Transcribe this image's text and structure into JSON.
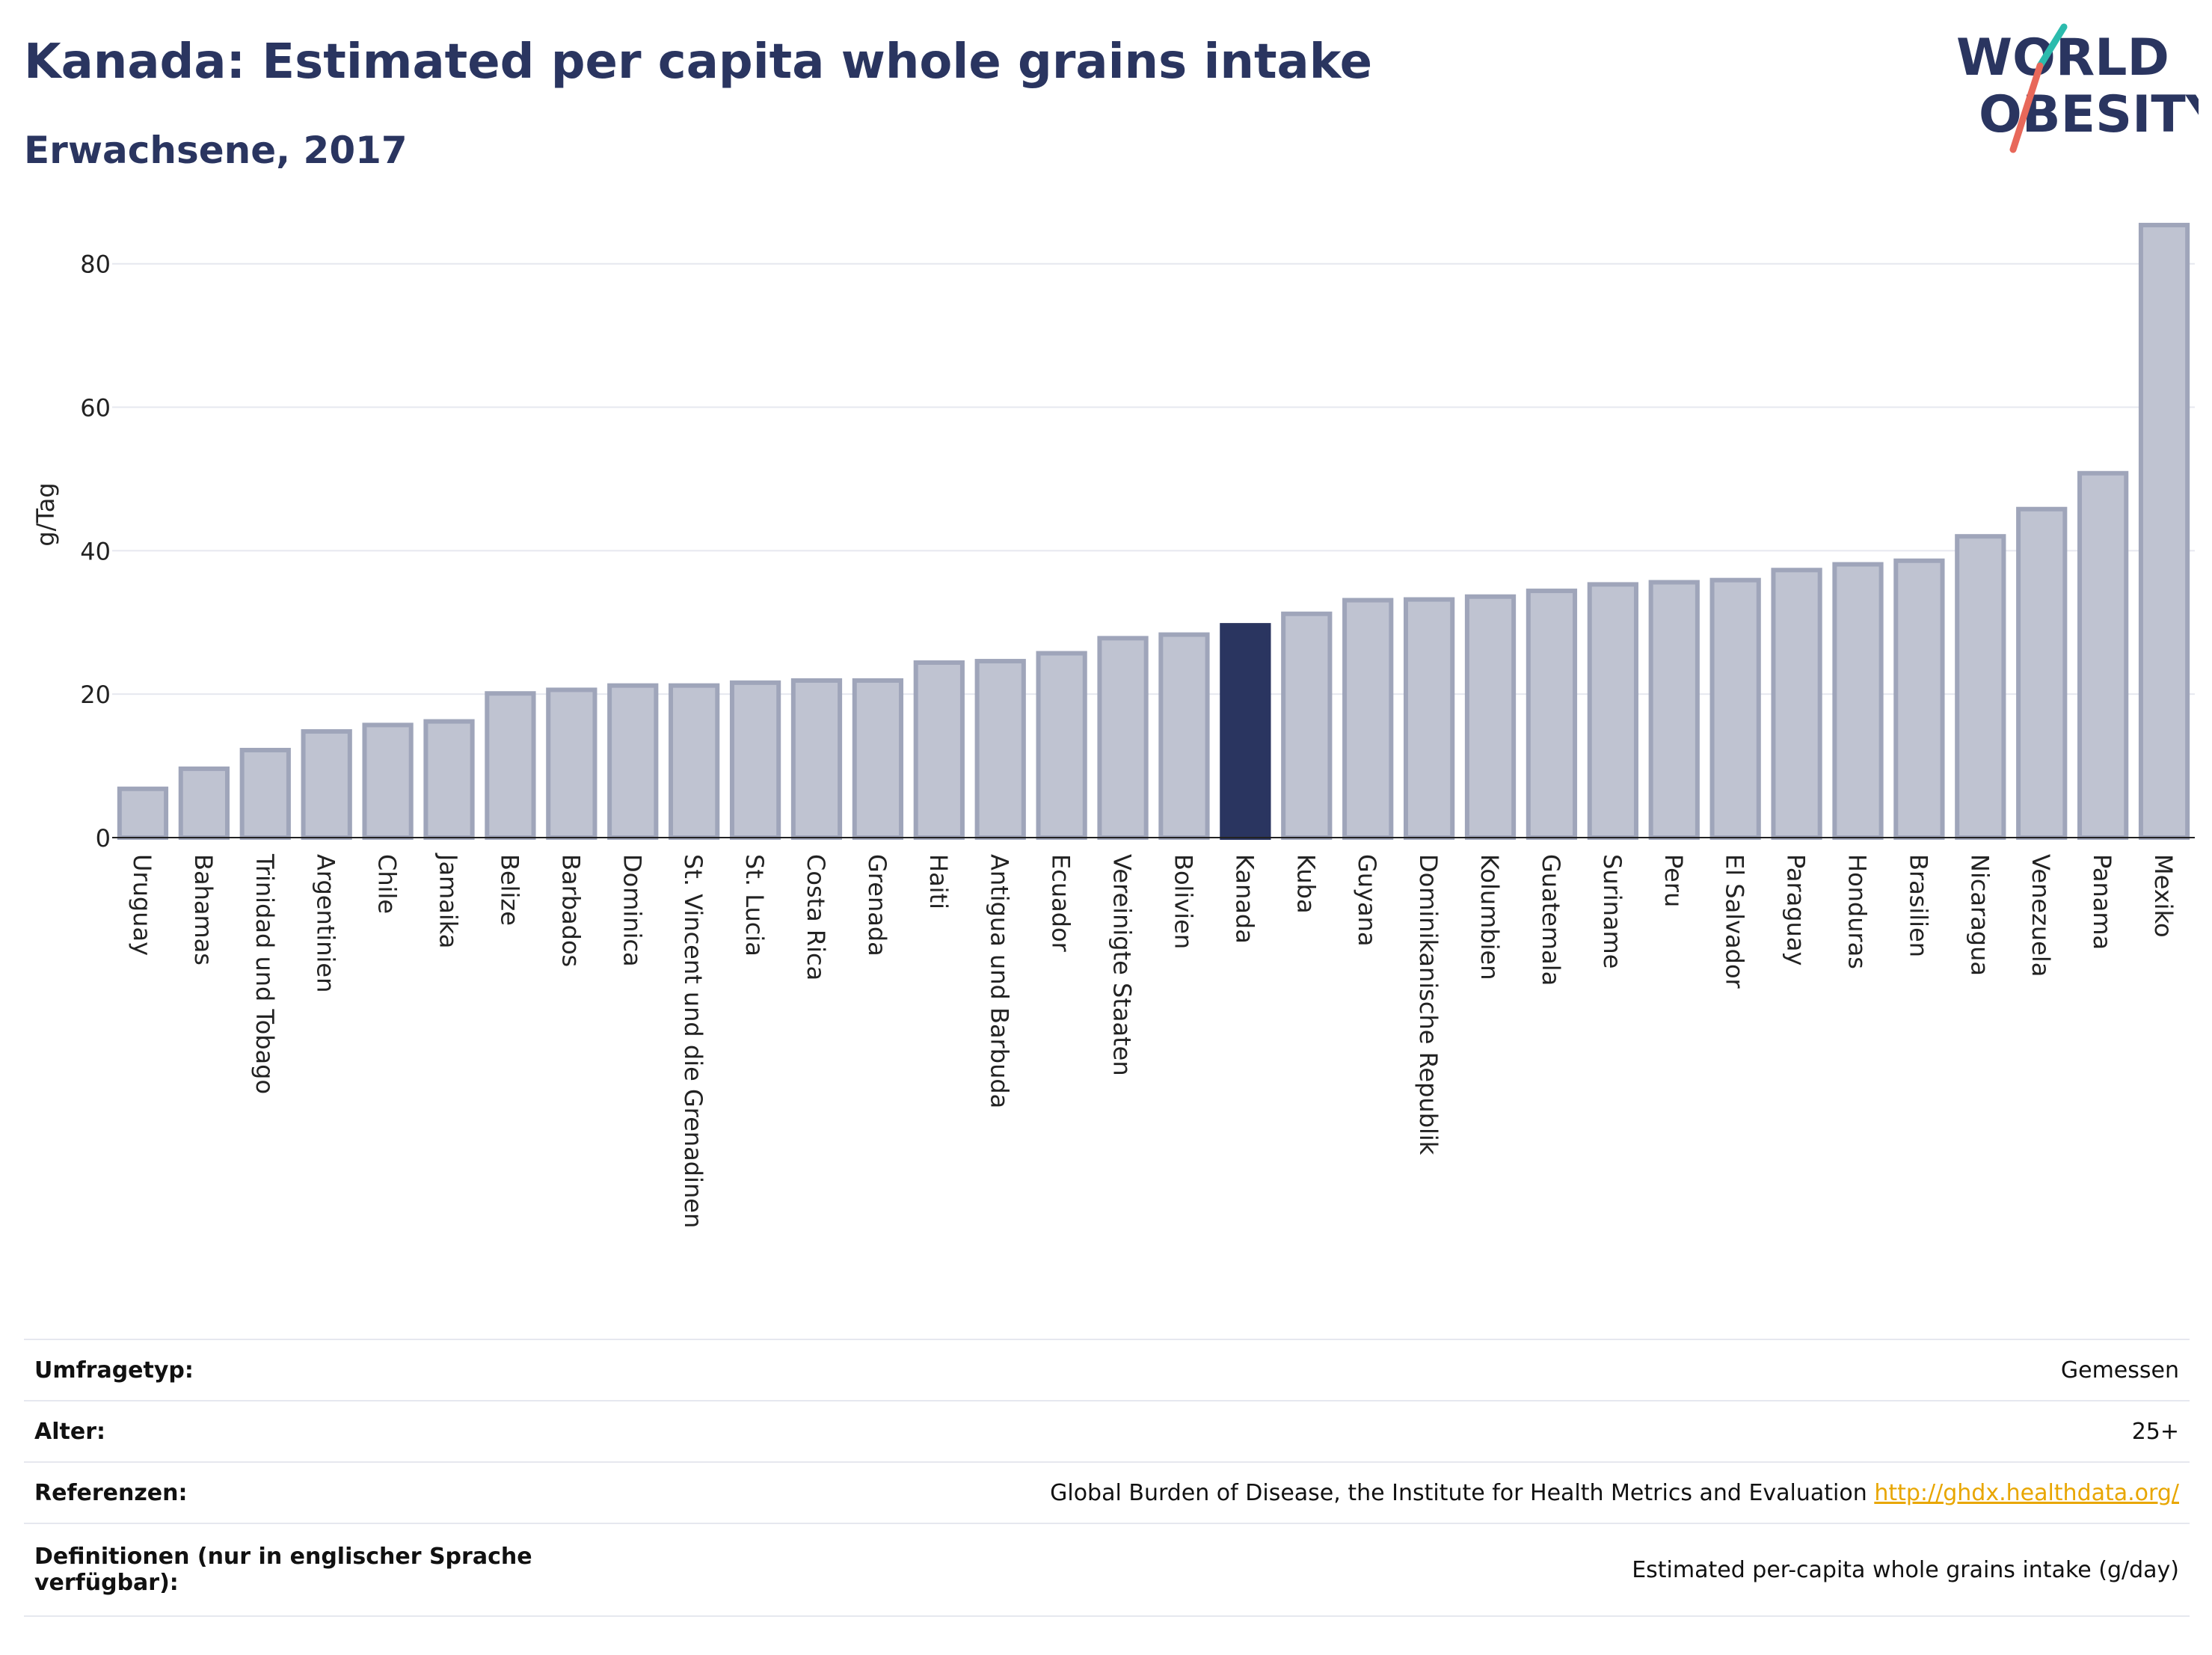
{
  "header": {
    "title": "Kanada: Estimated per capita whole grains intake",
    "subtitle": "Erwachsene, 2017"
  },
  "logo": {
    "line1": "WORLD",
    "line2": "OBESITY",
    "accent_teal": "#2bbbad",
    "accent_red": "#e8685a"
  },
  "colors": {
    "bar_fill": "#bfc3d1",
    "bar_stroke": "#9fa5ba",
    "highlight": "#2a3560",
    "title": "#2a3560"
  },
  "chart_data": {
    "type": "bar",
    "ylabel": "g/Tag",
    "xlabel": "",
    "ylim": [
      0,
      88
    ],
    "yticks": [
      0,
      20,
      40,
      60,
      80
    ],
    "grid": true,
    "highlight": "Kanada",
    "categories": [
      "Uruguay",
      "Bahamas",
      "Trinidad und Tobago",
      "Argentinien",
      "Chile",
      "Jamaika",
      "Belize",
      "Barbados",
      "Dominica",
      "St. Vincent und die Grenadinen",
      "St. Lucia",
      "Costa Rica",
      "Grenada",
      "Haiti",
      "Antigua und Barbuda",
      "Ecuador",
      "Vereinigte Staaten",
      "Bolivien",
      "Kanada",
      "Kuba",
      "Guyana",
      "Dominikanische Republik",
      "Kolumbien",
      "Guatemala",
      "Suriname",
      "Peru",
      "El Salvador",
      "Paraguay",
      "Honduras",
      "Brasilien",
      "Nicaragua",
      "Venezuela",
      "Panama",
      "Mexiko"
    ],
    "values": [
      6.8,
      9.6,
      12.2,
      14.8,
      15.7,
      16.2,
      20.1,
      20.6,
      21.2,
      21.2,
      21.6,
      21.9,
      21.9,
      24.4,
      24.6,
      25.7,
      27.8,
      28.3,
      29.6,
      31.2,
      33.1,
      33.2,
      33.6,
      34.4,
      35.3,
      35.6,
      35.9,
      37.3,
      38.1,
      38.6,
      42.0,
      45.8,
      50.8,
      85.4
    ]
  },
  "info": {
    "survey_label": "Umfragetyp:",
    "survey_value": "Gemessen",
    "age_label": "Alter:",
    "age_value": "25+",
    "ref_label": "Referenzen:",
    "ref_value": "Global Burden of Disease, the Institute for Health Metrics and Evaluation",
    "ref_link": "http://ghdx.healthdata.org/",
    "def_label": "Definitionen (nur in englischer Sprache verfügbar):",
    "def_value": "Estimated per-capita whole grains intake (g/day)"
  }
}
